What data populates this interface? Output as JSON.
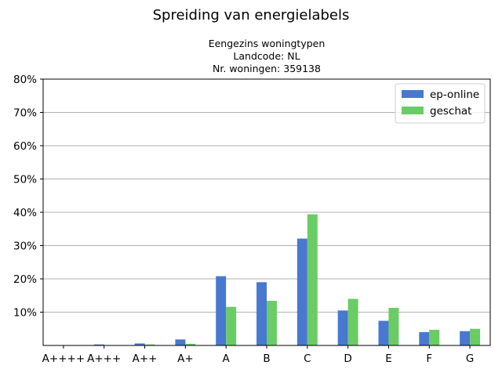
{
  "chart_data": {
    "type": "bar",
    "title": "Spreiding van energielabels",
    "subtitle_lines": [
      "Eengezins woningtypen",
      "Landcode: NL",
      "Nr. woningen: 359138"
    ],
    "categories": [
      "A++++",
      "A+++",
      "A++",
      "A+",
      "A",
      "B",
      "C",
      "D",
      "E",
      "F",
      "G"
    ],
    "series": [
      {
        "name": "ep-online",
        "color": "#4878d0",
        "values": [
          0.0,
          0.3,
          0.6,
          1.8,
          20.8,
          19.0,
          32.1,
          10.5,
          7.4,
          4.0,
          4.3
        ]
      },
      {
        "name": "geschat",
        "color": "#6acc64",
        "values": [
          0.0,
          0.0,
          0.3,
          0.5,
          11.6,
          13.4,
          39.4,
          14.0,
          11.3,
          4.7,
          5.0
        ]
      }
    ],
    "ylim": [
      0,
      80
    ],
    "yticks": [
      10,
      20,
      30,
      40,
      50,
      60,
      70,
      80
    ],
    "ytick_labels": [
      "10%",
      "20%",
      "30%",
      "40%",
      "50%",
      "60%",
      "70%",
      "80%"
    ],
    "grid": "horizontal",
    "legend_position": "upper right",
    "xlabel": "",
    "ylabel": ""
  }
}
